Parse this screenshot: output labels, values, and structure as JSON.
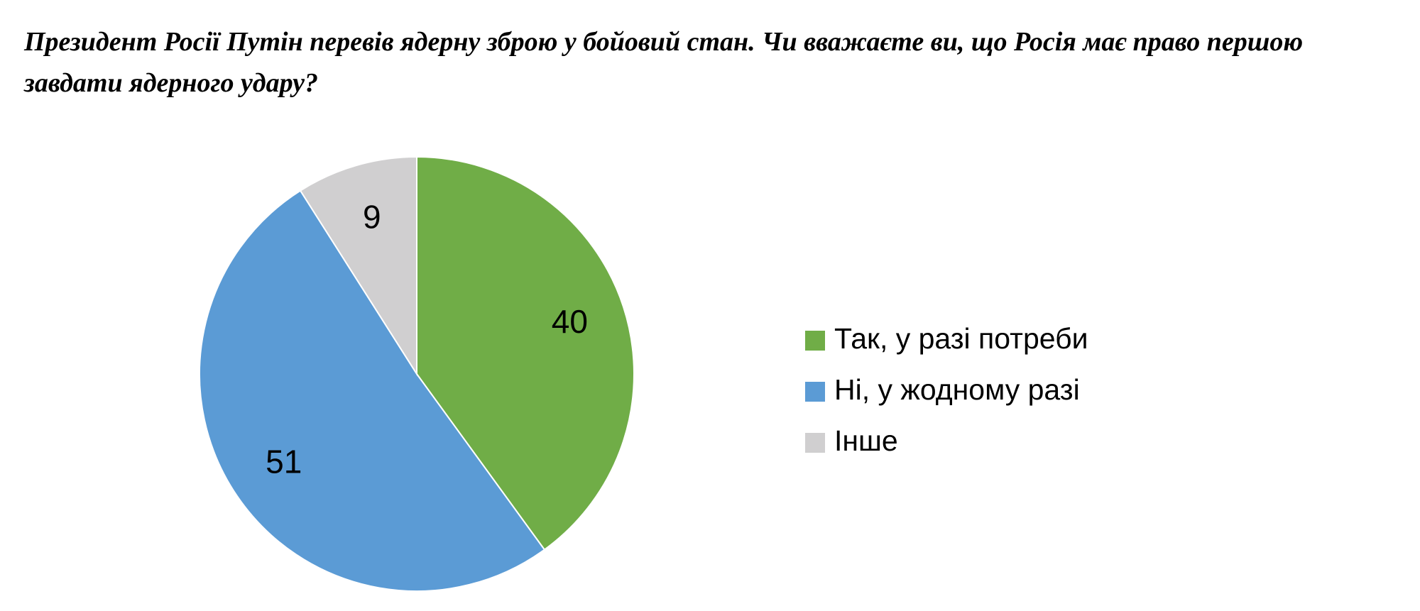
{
  "chart_data": {
    "type": "pie",
    "title": "Президент Росії Путін перевів ядерну зброю у бойовий стан. Чи вважаєте ви, що Росія має право першою завдати ядерного удару?",
    "categories": [
      "Так, у разі потреби",
      "Ні, у жодному разі",
      "Інше"
    ],
    "values": [
      40,
      51,
      9
    ],
    "colors": [
      "#70ad47",
      "#5b9bd5",
      "#d0cfd0"
    ],
    "legend": "right"
  }
}
